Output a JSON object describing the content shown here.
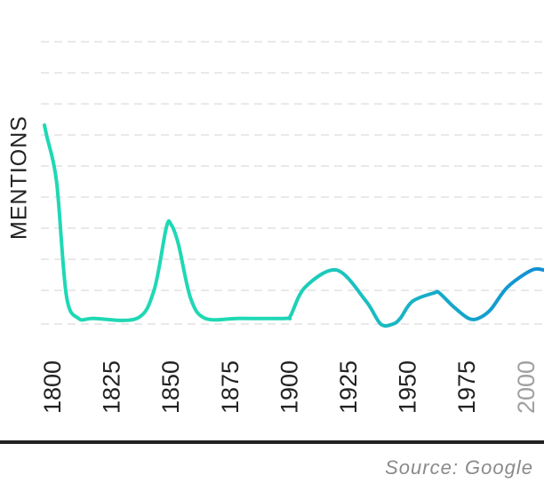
{
  "chart_data": {
    "type": "line",
    "title": "",
    "xlabel": "",
    "ylabel": "MENTIONS",
    "x_ticks": [
      "1800",
      "1825",
      "1850",
      "1875",
      "1900",
      "1925",
      "1950",
      "1975",
      "2000"
    ],
    "x_tick_colors": [
      "#222222",
      "#222222",
      "#222222",
      "#222222",
      "#222222",
      "#222222",
      "#222222",
      "#222222",
      "#a0a0a0"
    ],
    "xlim": [
      1800,
      2005
    ],
    "ylim": [
      0,
      10
    ],
    "grid": true,
    "legend": "none",
    "colors": {
      "start": "#1fd8b4",
      "end": "#118fd6",
      "grid": "#e2e2e2"
    },
    "series": [
      {
        "x": [
          1800,
          1801,
          1805,
          1809,
          1814,
          1820,
          1838,
          1845,
          1850,
          1852,
          1855,
          1860,
          1866,
          1880,
          1899,
          1901,
          1907,
          1920,
          1932,
          1938,
          1943,
          1946,
          1951,
          1960,
          1962,
          1968,
          1974,
          1978,
          1983,
          1990,
          2000,
          2005
        ],
        "y": [
          7.0,
          6.6,
          5.0,
          1.0,
          0.2,
          0.2,
          0.2,
          1.2,
          3.4,
          3.5,
          2.8,
          0.9,
          0.2,
          0.2,
          0.2,
          0.3,
          1.3,
          1.9,
          0.8,
          0.0,
          0.0,
          0.2,
          0.8,
          1.1,
          1.1,
          0.6,
          0.2,
          0.2,
          0.5,
          1.3,
          1.9,
          1.9
        ]
      }
    ]
  },
  "labels": {
    "ylabel": "MENTIONS",
    "source": "Source: Google"
  }
}
